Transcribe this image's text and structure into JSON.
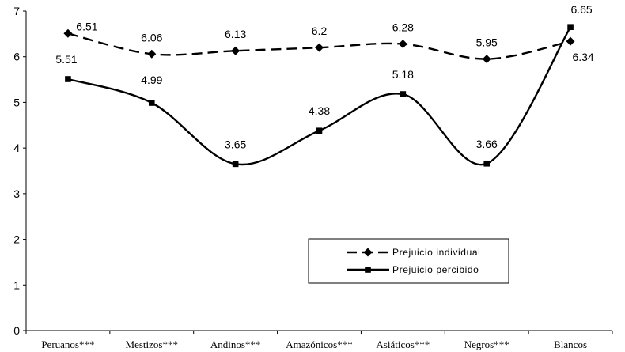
{
  "chart_data": {
    "type": "line",
    "categories": [
      "Peruanos***",
      "Mestizos***",
      "Andinos***",
      "Amazónicos***",
      "Asiáticos***",
      "Negros***",
      "Blancos"
    ],
    "series": [
      {
        "name": "Prejuicio individual",
        "values": [
          6.51,
          6.06,
          6.13,
          6.2,
          6.28,
          5.95,
          6.34
        ],
        "labels": [
          "6.51",
          "6.06",
          "6.13",
          "6.2",
          "6.28",
          "5.95",
          "6.34"
        ],
        "line_style": "dashed",
        "marker": "diamond",
        "color": "#000000"
      },
      {
        "name": "Prejuicio percibido",
        "values": [
          5.51,
          4.99,
          3.65,
          4.38,
          5.18,
          3.66,
          6.65
        ],
        "labels": [
          "5.51",
          "4.99",
          "3.65",
          "4.38",
          "5.18",
          "3.66",
          "6.65"
        ],
        "line_style": "solid",
        "marker": "square",
        "color": "#000000"
      }
    ],
    "ylim": [
      0,
      7
    ],
    "yticks": [
      "0",
      "1",
      "2",
      "3",
      "4",
      "5",
      "6",
      "7"
    ],
    "grid": false,
    "legend_position": "lower-right"
  }
}
